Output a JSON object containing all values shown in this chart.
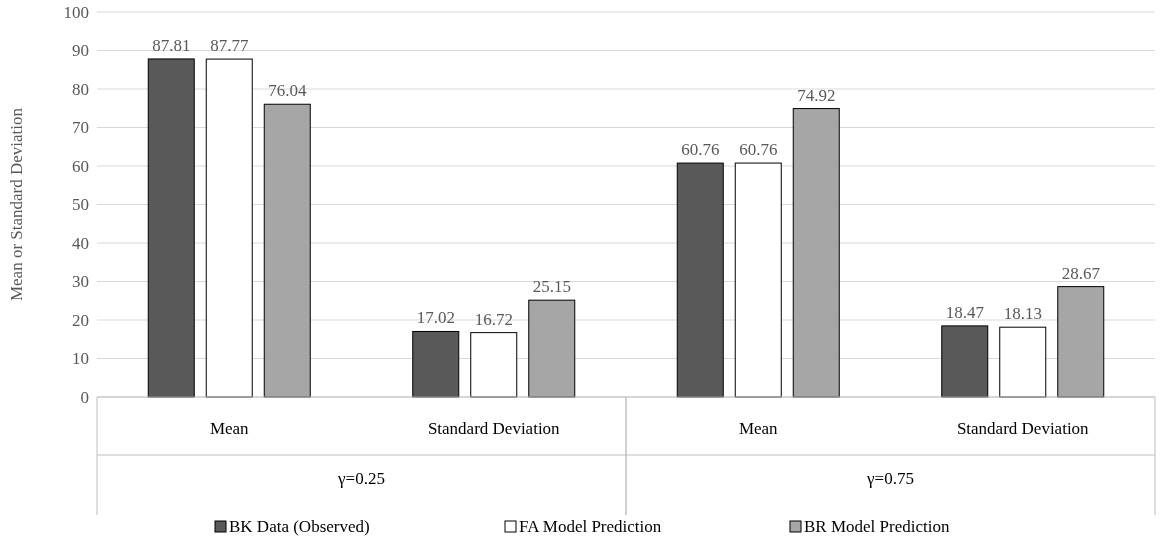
{
  "chart_data": {
    "type": "bar",
    "ylabel": "Mean or Standard Deviation",
    "categories": [
      "Mean",
      "Standard Deviation",
      "Mean",
      "Standard Deviation"
    ],
    "series": [
      {
        "name": "BK Data (Observed)",
        "color": "#595959",
        "values": [
          87.81,
          17.02,
          60.76,
          18.47
        ]
      },
      {
        "name": "FA Model Prediction",
        "color": "#ffffff",
        "values": [
          87.77,
          16.72,
          60.76,
          18.13
        ]
      },
      {
        "name": "BR Model Prediction",
        "color": "#a6a6a6",
        "values": [
          76.04,
          25.15,
          74.92,
          28.67
        ]
      }
    ],
    "annotations": [
      "γ=0.25",
      "γ=0.75"
    ],
    "ylim": [
      0,
      100
    ],
    "yticks": [
      0,
      10,
      20,
      30,
      40,
      50,
      60,
      70,
      80,
      90,
      100
    ],
    "grid": "y",
    "data_labels": true,
    "legend": "bottom"
  }
}
